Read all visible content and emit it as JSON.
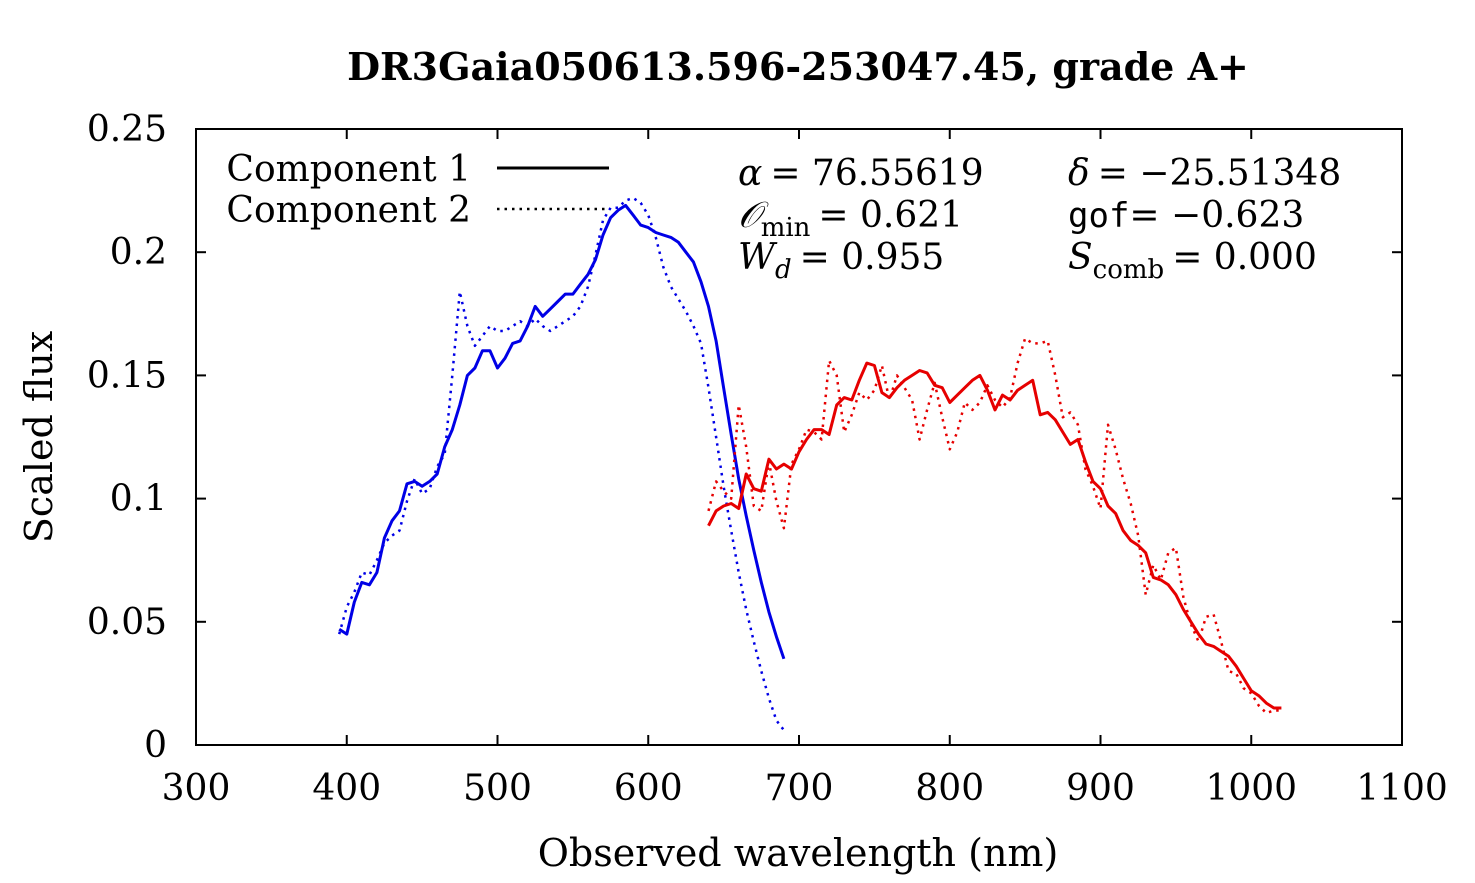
{
  "chart_data": {
    "type": "line",
    "title": "DR3Gaia050613.596-253047.45, grade A+",
    "xlabel": "Observed wavelength (nm)",
    "ylabel": "Scaled flux",
    "xlim": [
      300,
      1100
    ],
    "ylim": [
      0,
      0.25
    ],
    "x_ticks": [
      300,
      400,
      500,
      600,
      700,
      800,
      900,
      1000,
      1100
    ],
    "y_ticks": [
      0,
      0.05,
      0.1,
      0.15,
      0.2,
      0.25
    ],
    "x_tick_labels": [
      "300",
      "400",
      "500",
      "600",
      "700",
      "800",
      "900",
      "1000",
      "1100"
    ],
    "y_tick_labels": [
      "0",
      "0.05",
      "0.1",
      "0.15",
      "0.2",
      "0.25"
    ],
    "legend": {
      "placement": "top-left",
      "entries": [
        {
          "label": "Component 1",
          "style": "solid"
        },
        {
          "label": "Component 2",
          "style": "dotted"
        }
      ]
    },
    "annotations": {
      "alpha": {
        "symbol": "α",
        "eq": "= 76.55619"
      },
      "delta": {
        "symbol": "δ",
        "eq": "= −25.51348"
      },
      "omin": {
        "symbol": "𝒪",
        "sub": "min",
        "eq": "= 0.621"
      },
      "gof": {
        "symbol": "gof",
        "eq": "= −0.623"
      },
      "wd": {
        "symbol": "W",
        "sub": "d",
        "eq": "= 0.955"
      },
      "scomb": {
        "symbol": "S",
        "sub": "comb",
        "eq": "= 0.000"
      }
    },
    "colors": {
      "blue": "#0000e6",
      "red": "#e60000"
    },
    "series": [
      {
        "name": "Blue component 1",
        "color": "#0000e6",
        "style": "solid",
        "x": [
          395,
          400,
          405,
          410,
          415,
          420,
          425,
          430,
          435,
          440,
          445,
          450,
          455,
          460,
          465,
          470,
          475,
          480,
          485,
          490,
          495,
          500,
          505,
          510,
          515,
          520,
          525,
          530,
          535,
          540,
          545,
          550,
          555,
          560,
          565,
          570,
          575,
          580,
          585,
          590,
          595,
          600,
          605,
          610,
          615,
          620,
          625,
          630,
          635,
          640,
          645,
          650,
          655,
          660,
          665,
          670,
          675,
          680,
          685,
          690
        ],
        "y": [
          0.047,
          0.045,
          0.058,
          0.066,
          0.065,
          0.07,
          0.084,
          0.091,
          0.095,
          0.106,
          0.107,
          0.105,
          0.107,
          0.11,
          0.121,
          0.128,
          0.138,
          0.15,
          0.153,
          0.16,
          0.16,
          0.153,
          0.157,
          0.163,
          0.164,
          0.17,
          0.178,
          0.174,
          0.177,
          0.18,
          0.183,
          0.183,
          0.187,
          0.191,
          0.197,
          0.207,
          0.214,
          0.217,
          0.219,
          0.215,
          0.211,
          0.21,
          0.208,
          0.207,
          0.206,
          0.204,
          0.2,
          0.196,
          0.188,
          0.178,
          0.164,
          0.145,
          0.126,
          0.108,
          0.093,
          0.079,
          0.066,
          0.054,
          0.044,
          0.035
        ]
      },
      {
        "name": "Blue component 2",
        "color": "#0000e6",
        "style": "dotted",
        "x": [
          395,
          400,
          405,
          410,
          415,
          420,
          425,
          430,
          435,
          440,
          445,
          450,
          455,
          460,
          465,
          470,
          475,
          480,
          485,
          490,
          495,
          500,
          505,
          510,
          515,
          520,
          525,
          530,
          535,
          540,
          545,
          550,
          555,
          560,
          565,
          570,
          575,
          580,
          585,
          590,
          595,
          600,
          605,
          610,
          615,
          620,
          625,
          630,
          635,
          640,
          645,
          650,
          655,
          660,
          665,
          670,
          675,
          680,
          685,
          690
        ],
        "y": [
          0.045,
          0.056,
          0.062,
          0.07,
          0.069,
          0.075,
          0.082,
          0.085,
          0.087,
          0.099,
          0.108,
          0.102,
          0.104,
          0.113,
          0.118,
          0.15,
          0.184,
          0.17,
          0.162,
          0.166,
          0.17,
          0.168,
          0.168,
          0.17,
          0.172,
          0.17,
          0.173,
          0.17,
          0.168,
          0.17,
          0.172,
          0.174,
          0.178,
          0.186,
          0.199,
          0.213,
          0.218,
          0.218,
          0.221,
          0.222,
          0.22,
          0.215,
          0.206,
          0.194,
          0.186,
          0.181,
          0.176,
          0.17,
          0.163,
          0.145,
          0.125,
          0.105,
          0.087,
          0.07,
          0.055,
          0.042,
          0.03,
          0.019,
          0.01,
          0.006
        ]
      },
      {
        "name": "Red component 1",
        "color": "#e60000",
        "style": "solid",
        "x": [
          640,
          645,
          650,
          655,
          660,
          665,
          670,
          675,
          680,
          685,
          690,
          695,
          700,
          705,
          710,
          715,
          720,
          725,
          730,
          735,
          740,
          745,
          750,
          755,
          760,
          765,
          770,
          775,
          780,
          785,
          790,
          795,
          800,
          805,
          810,
          815,
          820,
          825,
          830,
          835,
          840,
          845,
          850,
          855,
          860,
          865,
          870,
          875,
          880,
          885,
          890,
          895,
          900,
          905,
          910,
          915,
          920,
          925,
          930,
          935,
          940,
          945,
          950,
          955,
          960,
          965,
          970,
          975,
          980,
          985,
          990,
          995,
          1000,
          1005,
          1010,
          1015,
          1020
        ],
        "y": [
          0.089,
          0.095,
          0.097,
          0.098,
          0.096,
          0.11,
          0.104,
          0.103,
          0.116,
          0.112,
          0.114,
          0.112,
          0.119,
          0.124,
          0.128,
          0.128,
          0.126,
          0.138,
          0.141,
          0.14,
          0.148,
          0.155,
          0.154,
          0.143,
          0.141,
          0.145,
          0.148,
          0.15,
          0.152,
          0.151,
          0.146,
          0.145,
          0.139,
          0.142,
          0.145,
          0.148,
          0.15,
          0.144,
          0.136,
          0.142,
          0.14,
          0.144,
          0.146,
          0.148,
          0.134,
          0.135,
          0.132,
          0.127,
          0.122,
          0.124,
          0.115,
          0.107,
          0.104,
          0.097,
          0.094,
          0.087,
          0.083,
          0.081,
          0.078,
          0.068,
          0.067,
          0.065,
          0.061,
          0.055,
          0.05,
          0.045,
          0.041,
          0.04,
          0.038,
          0.036,
          0.032,
          0.027,
          0.022,
          0.02,
          0.017,
          0.015,
          0.015
        ]
      },
      {
        "name": "Red component 2",
        "color": "#e60000",
        "style": "dotted",
        "x": [
          640,
          645,
          650,
          655,
          660,
          665,
          670,
          675,
          680,
          685,
          690,
          695,
          700,
          705,
          710,
          715,
          720,
          725,
          730,
          735,
          740,
          745,
          750,
          755,
          760,
          765,
          770,
          775,
          780,
          785,
          790,
          795,
          800,
          805,
          810,
          815,
          820,
          825,
          830,
          835,
          840,
          845,
          850,
          855,
          860,
          865,
          870,
          875,
          880,
          885,
          890,
          895,
          900,
          905,
          910,
          915,
          920,
          925,
          930,
          935,
          940,
          945,
          950,
          955,
          960,
          965,
          970,
          975,
          980,
          985,
          990,
          995,
          1000,
          1005,
          1010,
          1015,
          1020
        ],
        "y": [
          0.095,
          0.107,
          0.103,
          0.1,
          0.138,
          0.121,
          0.097,
          0.095,
          0.115,
          0.099,
          0.088,
          0.114,
          0.12,
          0.128,
          0.127,
          0.124,
          0.156,
          0.15,
          0.127,
          0.134,
          0.143,
          0.14,
          0.144,
          0.154,
          0.14,
          0.15,
          0.145,
          0.14,
          0.124,
          0.136,
          0.147,
          0.133,
          0.12,
          0.127,
          0.139,
          0.136,
          0.139,
          0.146,
          0.14,
          0.137,
          0.141,
          0.155,
          0.165,
          0.163,
          0.163,
          0.164,
          0.15,
          0.133,
          0.135,
          0.13,
          0.112,
          0.105,
          0.096,
          0.13,
          0.12,
          0.108,
          0.098,
          0.085,
          0.061,
          0.073,
          0.067,
          0.078,
          0.08,
          0.06,
          0.049,
          0.042,
          0.052,
          0.053,
          0.042,
          0.03,
          0.029,
          0.023,
          0.021,
          0.016,
          0.013,
          0.014,
          0.014
        ]
      }
    ]
  }
}
